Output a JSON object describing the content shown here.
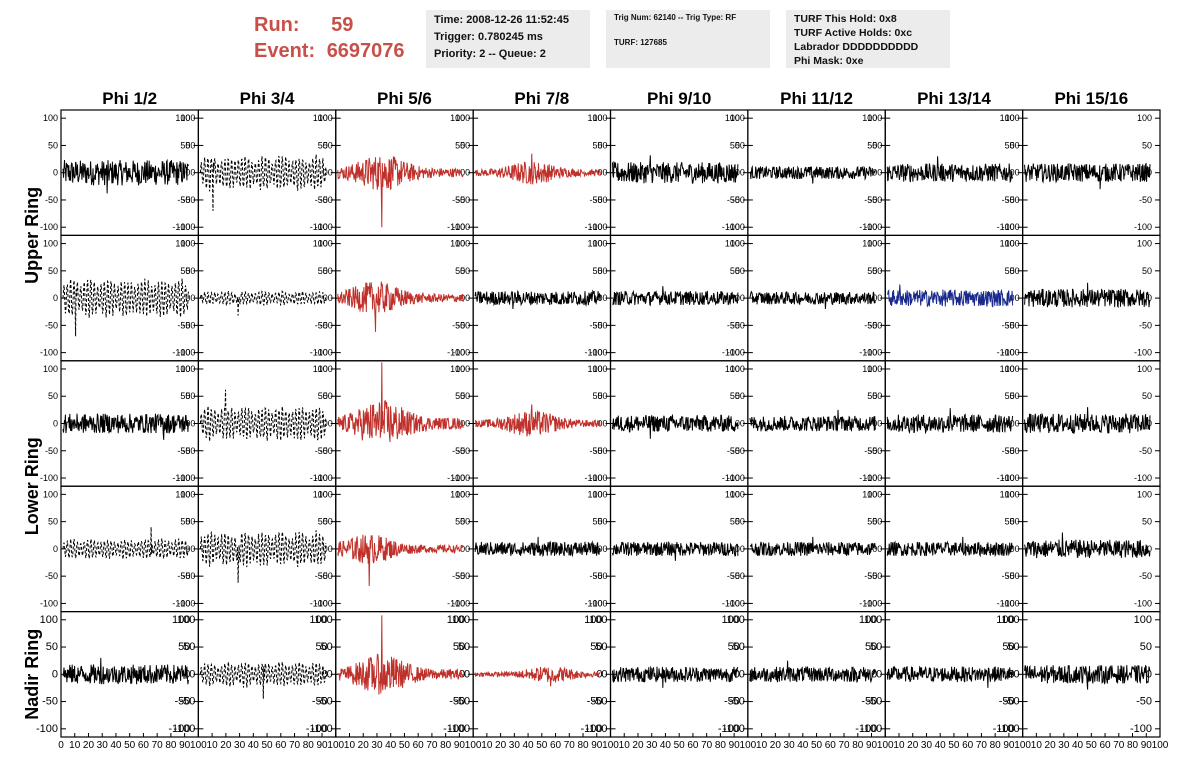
{
  "header": {
    "run_label": "Run:",
    "run_value": "59",
    "event_label": "Event:",
    "event_value": "6697076"
  },
  "info_time": {
    "time": "Time: 2008-12-26 11:52:45",
    "trigger": "Trigger: 0.780245 ms",
    "priority": "Priority: 2 -- Queue: 2"
  },
  "info_trig": {
    "trig": "Trig Num: 62140 -- Trig Type: RF",
    "turf": "TURF: 127685"
  },
  "info_turf": {
    "hold": "TURF This Hold: 0x8",
    "active": "TURF Active Holds: 0xc",
    "labrador": "Labrador DDDDDDDDDD",
    "phimask": "Phi Mask: 0xe"
  },
  "chart_data": {
    "type": "line",
    "columns": [
      "Phi 1/2",
      "Phi 3/4",
      "Phi 5/6",
      "Phi 7/8",
      "Phi 9/10",
      "Phi 11/12",
      "Phi 13/14",
      "Phi 15/16"
    ],
    "rows": [
      "Upper Ring",
      "Upper Ring",
      "Lower Ring",
      "Lower Ring",
      "Nadir Ring"
    ],
    "row_groups": [
      {
        "label": "Upper Ring",
        "rows": [
          0,
          1
        ]
      },
      {
        "label": "Lower Ring",
        "rows": [
          2,
          3
        ]
      },
      {
        "label": "Nadir Ring",
        "rows": [
          4
        ]
      }
    ],
    "ylim": [
      -115,
      115
    ],
    "xlim": [
      0,
      100
    ],
    "yticks": [
      -100,
      -50,
      0,
      50,
      100
    ],
    "xtick_labels": [
      "0",
      "10",
      "20",
      "30",
      "40",
      "50",
      "60",
      "70",
      "80",
      "90",
      "100"
    ],
    "colors": {
      "black": "#000000",
      "red": "#c0302a",
      "blue": "#1a2a8c"
    },
    "panels": [
      {
        "row": 0,
        "col": 0,
        "color": "black",
        "dashed": false,
        "amp": 18,
        "peak_pos": 0.35,
        "peak": 38
      },
      {
        "row": 0,
        "col": 1,
        "color": "black",
        "dashed": true,
        "amp": 35,
        "peak_pos": 0.1,
        "peak": 70
      },
      {
        "row": 0,
        "col": 2,
        "color": "red",
        "dashed": false,
        "amp": 22,
        "peak_pos": 0.35,
        "peak": 100
      },
      {
        "row": 0,
        "col": 3,
        "color": "red",
        "dashed": false,
        "amp": 14,
        "peak_pos": 0.45,
        "peak": 35
      },
      {
        "row": 0,
        "col": 4,
        "color": "black",
        "dashed": false,
        "amp": 15,
        "peak_pos": 0.3,
        "peak": 32
      },
      {
        "row": 0,
        "col": 5,
        "color": "black",
        "dashed": false,
        "amp": 9,
        "peak_pos": 0.5,
        "peak": 20
      },
      {
        "row": 0,
        "col": 6,
        "color": "black",
        "dashed": false,
        "amp": 13,
        "peak_pos": 0.4,
        "peak": 30
      },
      {
        "row": 0,
        "col": 7,
        "color": "black",
        "dashed": false,
        "amp": 13,
        "peak_pos": 0.6,
        "peak": 30
      },
      {
        "row": 1,
        "col": 0,
        "color": "black",
        "dashed": true,
        "amp": 38,
        "peak_pos": 0.1,
        "peak": 70
      },
      {
        "row": 1,
        "col": 1,
        "color": "black",
        "dashed": true,
        "amp": 14,
        "peak_pos": 0.3,
        "peak": 32
      },
      {
        "row": 1,
        "col": 2,
        "color": "red",
        "dashed": false,
        "amp": 20,
        "peak_pos": 0.3,
        "peak": 62
      },
      {
        "row": 1,
        "col": 3,
        "color": "black",
        "dashed": false,
        "amp": 10,
        "peak_pos": 0.3,
        "peak": 20
      },
      {
        "row": 1,
        "col": 4,
        "color": "black",
        "dashed": false,
        "amp": 10,
        "peak_pos": 0.4,
        "peak": 22
      },
      {
        "row": 1,
        "col": 5,
        "color": "black",
        "dashed": false,
        "amp": 9,
        "peak_pos": 0.6,
        "peak": 20
      },
      {
        "row": 1,
        "col": 6,
        "color": "blue",
        "dashed": false,
        "amp": 12,
        "peak_pos": 0.1,
        "peak": 25
      },
      {
        "row": 1,
        "col": 7,
        "color": "black",
        "dashed": false,
        "amp": 13,
        "peak_pos": 0.5,
        "peak": 28
      },
      {
        "row": 2,
        "col": 0,
        "color": "black",
        "dashed": false,
        "amp": 14,
        "peak_pos": 0.8,
        "peak": 30
      },
      {
        "row": 2,
        "col": 1,
        "color": "black",
        "dashed": true,
        "amp": 35,
        "peak_pos": 0.2,
        "peak": 62
      },
      {
        "row": 2,
        "col": 2,
        "color": "red",
        "dashed": false,
        "amp": 28,
        "peak_pos": 0.35,
        "peak": 112
      },
      {
        "row": 2,
        "col": 3,
        "color": "red",
        "dashed": false,
        "amp": 16,
        "peak_pos": 0.45,
        "peak": 35
      },
      {
        "row": 2,
        "col": 4,
        "color": "black",
        "dashed": false,
        "amp": 12,
        "peak_pos": 0.3,
        "peak": 28
      },
      {
        "row": 2,
        "col": 5,
        "color": "black",
        "dashed": false,
        "amp": 11,
        "peak_pos": 0.7,
        "peak": 25
      },
      {
        "row": 2,
        "col": 6,
        "color": "black",
        "dashed": false,
        "amp": 13,
        "peak_pos": 0.5,
        "peak": 28
      },
      {
        "row": 2,
        "col": 7,
        "color": "black",
        "dashed": false,
        "amp": 14,
        "peak_pos": 0.5,
        "peak": 30
      },
      {
        "row": 3,
        "col": 0,
        "color": "black",
        "dashed": true,
        "amp": 20,
        "peak_pos": 0.7,
        "peak": 40
      },
      {
        "row": 3,
        "col": 1,
        "color": "black",
        "dashed": true,
        "amp": 35,
        "peak_pos": 0.3,
        "peak": 62
      },
      {
        "row": 3,
        "col": 2,
        "color": "red",
        "dashed": false,
        "amp": 18,
        "peak_pos": 0.25,
        "peak": 68
      },
      {
        "row": 3,
        "col": 3,
        "color": "black",
        "dashed": false,
        "amp": 10,
        "peak_pos": 0.5,
        "peak": 22
      },
      {
        "row": 3,
        "col": 4,
        "color": "black",
        "dashed": false,
        "amp": 10,
        "peak_pos": 0.5,
        "peak": 22
      },
      {
        "row": 3,
        "col": 5,
        "color": "black",
        "dashed": false,
        "amp": 10,
        "peak_pos": 0.5,
        "peak": 22
      },
      {
        "row": 3,
        "col": 6,
        "color": "black",
        "dashed": false,
        "amp": 10,
        "peak_pos": 0.6,
        "peak": 22
      },
      {
        "row": 3,
        "col": 7,
        "color": "black",
        "dashed": false,
        "amp": 13,
        "peak_pos": 0.3,
        "peak": 30
      },
      {
        "row": 4,
        "col": 0,
        "color": "black",
        "dashed": false,
        "amp": 14,
        "peak_pos": 0.3,
        "peak": 30
      },
      {
        "row": 4,
        "col": 1,
        "color": "black",
        "dashed": true,
        "amp": 25,
        "peak_pos": 0.5,
        "peak": 45
      },
      {
        "row": 4,
        "col": 2,
        "color": "red",
        "dashed": false,
        "amp": 24,
        "peak_pos": 0.35,
        "peak": 108
      },
      {
        "row": 4,
        "col": 3,
        "color": "red",
        "dashed": false,
        "amp": 10,
        "peak_pos": 0.6,
        "peak": 22
      },
      {
        "row": 4,
        "col": 4,
        "color": "black",
        "dashed": false,
        "amp": 11,
        "peak_pos": 0.4,
        "peak": 25
      },
      {
        "row": 4,
        "col": 5,
        "color": "black",
        "dashed": false,
        "amp": 11,
        "peak_pos": 0.3,
        "peak": 25
      },
      {
        "row": 4,
        "col": 6,
        "color": "black",
        "dashed": false,
        "amp": 11,
        "peak_pos": 0.8,
        "peak": 25
      },
      {
        "row": 4,
        "col": 7,
        "color": "black",
        "dashed": false,
        "amp": 13,
        "peak_pos": 0.5,
        "peak": 28
      }
    ]
  }
}
